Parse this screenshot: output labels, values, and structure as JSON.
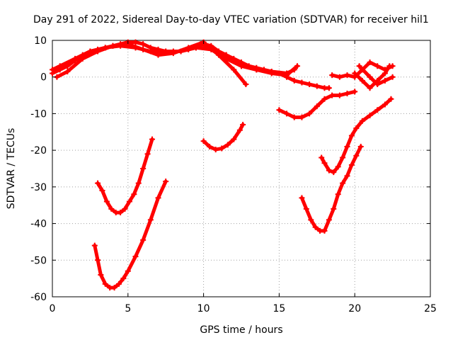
{
  "chart_data": {
    "type": "scatter",
    "title": "Day 291 of 2022, Sidereal Day-to-day VTEC variation (SDTVAR) for receiver hil1",
    "xlabel": "GPS time / hours",
    "ylabel": "SDTVAR / TECUs",
    "xlim": [
      0,
      25
    ],
    "ylim": [
      -60,
      10
    ],
    "xticks": [
      "0",
      "5",
      "10",
      "15",
      "20",
      "25"
    ],
    "yticks": [
      "10",
      "0",
      "-10",
      "-20",
      "-30",
      "-40",
      "-50",
      "-60"
    ],
    "xtick_values": [
      0,
      5,
      10,
      15,
      20,
      25
    ],
    "ytick_values": [
      10,
      0,
      -10,
      -20,
      -30,
      -40,
      -50,
      -60
    ],
    "grid": true,
    "color": "#ff0000",
    "series": [
      {
        "name": "arc-top-1",
        "x": [
          0,
          0.5,
          1,
          1.5,
          2,
          2.5,
          3,
          3.5,
          4,
          4.5,
          5,
          5.5,
          6,
          6.5,
          7,
          7.5,
          8,
          8.5,
          9,
          9.5,
          10,
          10.5,
          11,
          11.5,
          12,
          12.5,
          13,
          13.5,
          14,
          14.5,
          15,
          15.5,
          16,
          16.5,
          17,
          17.5,
          18,
          18.3
        ],
        "y": [
          1,
          2,
          3,
          4.5,
          6,
          7,
          7.5,
          8,
          8.5,
          9,
          9.5,
          9.5,
          9,
          8,
          7.5,
          7,
          7,
          7,
          7.5,
          8,
          9,
          8.5,
          7,
          6,
          5,
          4,
          3,
          2.5,
          2,
          1.5,
          1,
          0,
          -1,
          -1.5,
          -2,
          -2.5,
          -3,
          -3
        ]
      },
      {
        "name": "arc-top-2",
        "x": [
          0.3,
          1,
          2,
          3,
          4,
          5,
          6,
          7,
          8,
          9,
          10,
          11,
          12,
          12.8
        ],
        "y": [
          0,
          1.5,
          5,
          7,
          8.5,
          9,
          7.5,
          6,
          6.5,
          8,
          9.5,
          6,
          2,
          -2
        ]
      },
      {
        "name": "arc-top-3",
        "x": [
          0,
          0.5,
          1.5,
          2.5,
          3.5,
          4.5,
          5.5,
          6.5,
          7.5,
          8.5,
          9.5,
          10.5,
          11.5,
          12.5,
          13.5,
          14.5,
          15.5,
          16
        ],
        "y": [
          2,
          3,
          5,
          7,
          8,
          8.5,
          8,
          7,
          7,
          7,
          8,
          7.5,
          5,
          3,
          2,
          1.5,
          1,
          2
        ]
      },
      {
        "name": "arc-top-4",
        "x": [
          9.8,
          10.5,
          11.5,
          12.5,
          13.5,
          14.5,
          15.5,
          16.2
        ],
        "y": [
          9,
          8,
          6,
          3,
          2,
          1,
          0.5,
          3
        ]
      },
      {
        "name": "arc-right-1",
        "x": [
          18.5,
          19,
          19.5,
          20,
          20.5,
          21,
          21.5,
          22,
          22.5
        ],
        "y": [
          0.5,
          0,
          0.5,
          0,
          2,
          4,
          3,
          2,
          3
        ]
      },
      {
        "name": "arc-right-2",
        "x": [
          20,
          20.5,
          21,
          21.5,
          22,
          22.3
        ],
        "y": [
          1,
          -1,
          -3,
          -1,
          1,
          3
        ]
      },
      {
        "name": "arc-right-3",
        "x": [
          20.3,
          21,
          21.5,
          22,
          22.5
        ],
        "y": [
          3,
          0,
          -2,
          -1,
          0
        ]
      },
      {
        "name": "arc-neg5",
        "x": [
          15,
          15.5,
          16,
          16.5,
          17,
          17.5,
          18,
          18.5,
          19,
          19.5,
          20
        ],
        "y": [
          -9,
          -10,
          -11,
          -11,
          -10,
          -8,
          -6,
          -5,
          -5,
          -4.5,
          -4
        ]
      },
      {
        "name": "arc-mid",
        "x": [
          10,
          10.4,
          10.8,
          11.2,
          11.6,
          12,
          12.4,
          12.6
        ],
        "y": [
          -17.5,
          -19,
          -19.8,
          -19.5,
          -18.5,
          -17,
          -14.5,
          -13
        ]
      },
      {
        "name": "arc-left-1",
        "x": [
          3,
          3.3,
          3.6,
          3.9,
          4.2,
          4.5,
          4.8,
          5.1,
          5.4,
          5.7,
          6,
          6.3,
          6.6
        ],
        "y": [
          -29,
          -31,
          -34,
          -36,
          -37,
          -37,
          -36,
          -34,
          -32,
          -29,
          -25,
          -21,
          -17
        ]
      },
      {
        "name": "arc-left-2",
        "x": [
          2.8,
          3,
          3.2,
          3.5,
          3.8,
          4.1,
          4.4,
          4.7,
          5,
          5.5,
          6,
          6.5,
          7,
          7.5
        ],
        "y": [
          -46,
          -50,
          -54,
          -56.5,
          -57.5,
          -57.5,
          -56.5,
          -55,
          -53,
          -49,
          -44.5,
          -39,
          -33,
          -28.5
        ]
      },
      {
        "name": "arc-right-lower-1",
        "x": [
          16.5,
          16.8,
          17.1,
          17.4,
          17.7,
          18,
          18.3,
          18.6,
          18.9,
          19.2,
          19.5,
          19.8,
          20.1,
          20.4
        ],
        "y": [
          -33,
          -36,
          -39,
          -41,
          -42,
          -42,
          -39,
          -36,
          -32,
          -29,
          -27,
          -24,
          -21.5,
          -19
        ]
      },
      {
        "name": "arc-right-lower-2",
        "x": [
          17.8,
          18,
          18.3,
          18.6,
          18.9,
          19.2,
          19.5,
          19.8,
          20.1,
          20.5,
          21,
          21.5,
          22,
          22.4
        ],
        "y": [
          -22,
          -23.5,
          -25.5,
          -26,
          -24.5,
          -22,
          -19,
          -16,
          -14,
          -12,
          -10.5,
          -9,
          -7.5,
          -6
        ]
      }
    ]
  }
}
